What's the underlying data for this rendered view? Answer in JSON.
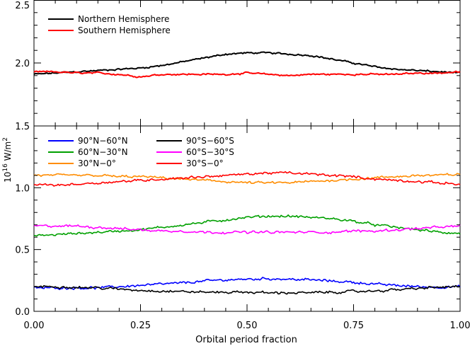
{
  "chart_data": [
    {
      "type": "line",
      "panel": "top",
      "xlim": [
        0,
        1
      ],
      "ylim": [
        1.5,
        2.5
      ],
      "yticks": [
        1.5,
        2.0,
        2.5
      ],
      "ytick_labels": [
        "1.5",
        "2.0",
        "2.5"
      ],
      "xticks": [
        0,
        0.25,
        0.5,
        0.75,
        1.0
      ],
      "legend_position": "top-left",
      "grid": false,
      "series": [
        {
          "name": "Northern Hemisphere",
          "color": "#000000",
          "x": [
            0.0,
            0.05,
            0.1,
            0.15,
            0.2,
            0.25,
            0.3,
            0.35,
            0.4,
            0.45,
            0.5,
            0.55,
            0.6,
            0.65,
            0.7,
            0.75,
            0.8,
            0.85,
            0.9,
            0.95,
            1.0
          ],
          "values": [
            1.91,
            1.92,
            1.93,
            1.94,
            1.95,
            1.96,
            1.98,
            2.01,
            2.04,
            2.07,
            2.08,
            2.08,
            2.07,
            2.06,
            2.03,
            2.0,
            1.97,
            1.95,
            1.94,
            1.93,
            1.92
          ]
        },
        {
          "name": "Southern Hemisphere",
          "color": "#ff0000",
          "x": [
            0.0,
            0.05,
            0.1,
            0.15,
            0.2,
            0.25,
            0.3,
            0.35,
            0.4,
            0.45,
            0.5,
            0.55,
            0.6,
            0.65,
            0.7,
            0.75,
            0.8,
            0.85,
            0.9,
            0.95,
            1.0
          ],
          "values": [
            1.93,
            1.93,
            1.92,
            1.92,
            1.91,
            1.89,
            1.91,
            1.91,
            1.91,
            1.91,
            1.92,
            1.91,
            1.9,
            1.91,
            1.91,
            1.91,
            1.91,
            1.91,
            1.92,
            1.92,
            1.93
          ]
        }
      ]
    },
    {
      "type": "line",
      "panel": "bottom",
      "xlim": [
        0,
        1
      ],
      "ylim": [
        0,
        1.5
      ],
      "yticks": [
        0,
        0.5,
        1.0,
        1.5
      ],
      "ytick_labels": [
        "0.0",
        "0.5",
        "1.0",
        "1.5"
      ],
      "xticks": [
        0,
        0.25,
        0.5,
        0.75,
        1.0
      ],
      "xtick_labels": [
        "0.00",
        "0.25",
        "0.50",
        "0.75",
        "1.00"
      ],
      "xlabel": "Orbital period fraction",
      "ylabel": "10¹⁶ W/m²",
      "legend_position": "top-left",
      "grid": false,
      "series": [
        {
          "name": "90°N−60°N",
          "color": "#0000ff",
          "x": [
            0.0,
            0.05,
            0.1,
            0.15,
            0.2,
            0.25,
            0.3,
            0.35,
            0.4,
            0.45,
            0.5,
            0.55,
            0.6,
            0.65,
            0.7,
            0.75,
            0.8,
            0.85,
            0.9,
            0.95,
            1.0
          ],
          "values": [
            0.19,
            0.19,
            0.19,
            0.19,
            0.2,
            0.21,
            0.22,
            0.23,
            0.245,
            0.255,
            0.26,
            0.265,
            0.26,
            0.255,
            0.245,
            0.235,
            0.22,
            0.21,
            0.2,
            0.195,
            0.2
          ]
        },
        {
          "name": "60°N−30°N",
          "color": "#00a000",
          "x": [
            0.0,
            0.05,
            0.1,
            0.15,
            0.2,
            0.25,
            0.3,
            0.35,
            0.4,
            0.45,
            0.5,
            0.55,
            0.6,
            0.65,
            0.7,
            0.75,
            0.8,
            0.85,
            0.9,
            0.95,
            1.0
          ],
          "values": [
            0.61,
            0.62,
            0.63,
            0.64,
            0.65,
            0.66,
            0.68,
            0.7,
            0.72,
            0.74,
            0.76,
            0.77,
            0.77,
            0.76,
            0.75,
            0.73,
            0.7,
            0.68,
            0.66,
            0.64,
            0.63
          ]
        },
        {
          "name": "30°N−0°",
          "color": "#ff8c00",
          "x": [
            0.0,
            0.05,
            0.1,
            0.15,
            0.2,
            0.25,
            0.3,
            0.35,
            0.4,
            0.45,
            0.5,
            0.55,
            0.6,
            0.65,
            0.7,
            0.75,
            0.8,
            0.85,
            0.9,
            0.95,
            1.0
          ],
          "values": [
            1.1,
            1.1,
            1.1,
            1.1,
            1.09,
            1.09,
            1.08,
            1.07,
            1.06,
            1.05,
            1.04,
            1.04,
            1.04,
            1.05,
            1.06,
            1.07,
            1.08,
            1.09,
            1.1,
            1.1,
            1.11
          ]
        },
        {
          "name": "90°S−60°S",
          "color": "#000000",
          "x": [
            0.0,
            0.05,
            0.1,
            0.15,
            0.2,
            0.25,
            0.3,
            0.35,
            0.4,
            0.45,
            0.5,
            0.55,
            0.6,
            0.65,
            0.7,
            0.75,
            0.8,
            0.85,
            0.9,
            0.95,
            1.0
          ],
          "values": [
            0.2,
            0.2,
            0.195,
            0.19,
            0.18,
            0.17,
            0.165,
            0.16,
            0.155,
            0.155,
            0.155,
            0.15,
            0.15,
            0.15,
            0.155,
            0.16,
            0.165,
            0.175,
            0.185,
            0.195,
            0.2
          ]
        },
        {
          "name": "60°S−30°S",
          "color": "#ff00ff",
          "x": [
            0.0,
            0.05,
            0.1,
            0.15,
            0.2,
            0.25,
            0.3,
            0.35,
            0.4,
            0.45,
            0.5,
            0.55,
            0.6,
            0.65,
            0.7,
            0.75,
            0.8,
            0.85,
            0.9,
            0.95,
            1.0
          ],
          "values": [
            0.69,
            0.69,
            0.69,
            0.68,
            0.67,
            0.66,
            0.65,
            0.65,
            0.64,
            0.64,
            0.64,
            0.64,
            0.64,
            0.64,
            0.64,
            0.65,
            0.65,
            0.66,
            0.67,
            0.68,
            0.69
          ]
        },
        {
          "name": "30°S−0°",
          "color": "#ff0000",
          "x": [
            0.0,
            0.05,
            0.1,
            0.15,
            0.2,
            0.25,
            0.3,
            0.35,
            0.4,
            0.45,
            0.5,
            0.55,
            0.6,
            0.65,
            0.7,
            0.75,
            0.8,
            0.85,
            0.9,
            0.95,
            1.0
          ],
          "values": [
            1.03,
            1.02,
            1.03,
            1.04,
            1.05,
            1.06,
            1.07,
            1.08,
            1.09,
            1.1,
            1.11,
            1.12,
            1.12,
            1.11,
            1.1,
            1.09,
            1.07,
            1.06,
            1.05,
            1.04,
            1.03
          ]
        }
      ]
    }
  ]
}
